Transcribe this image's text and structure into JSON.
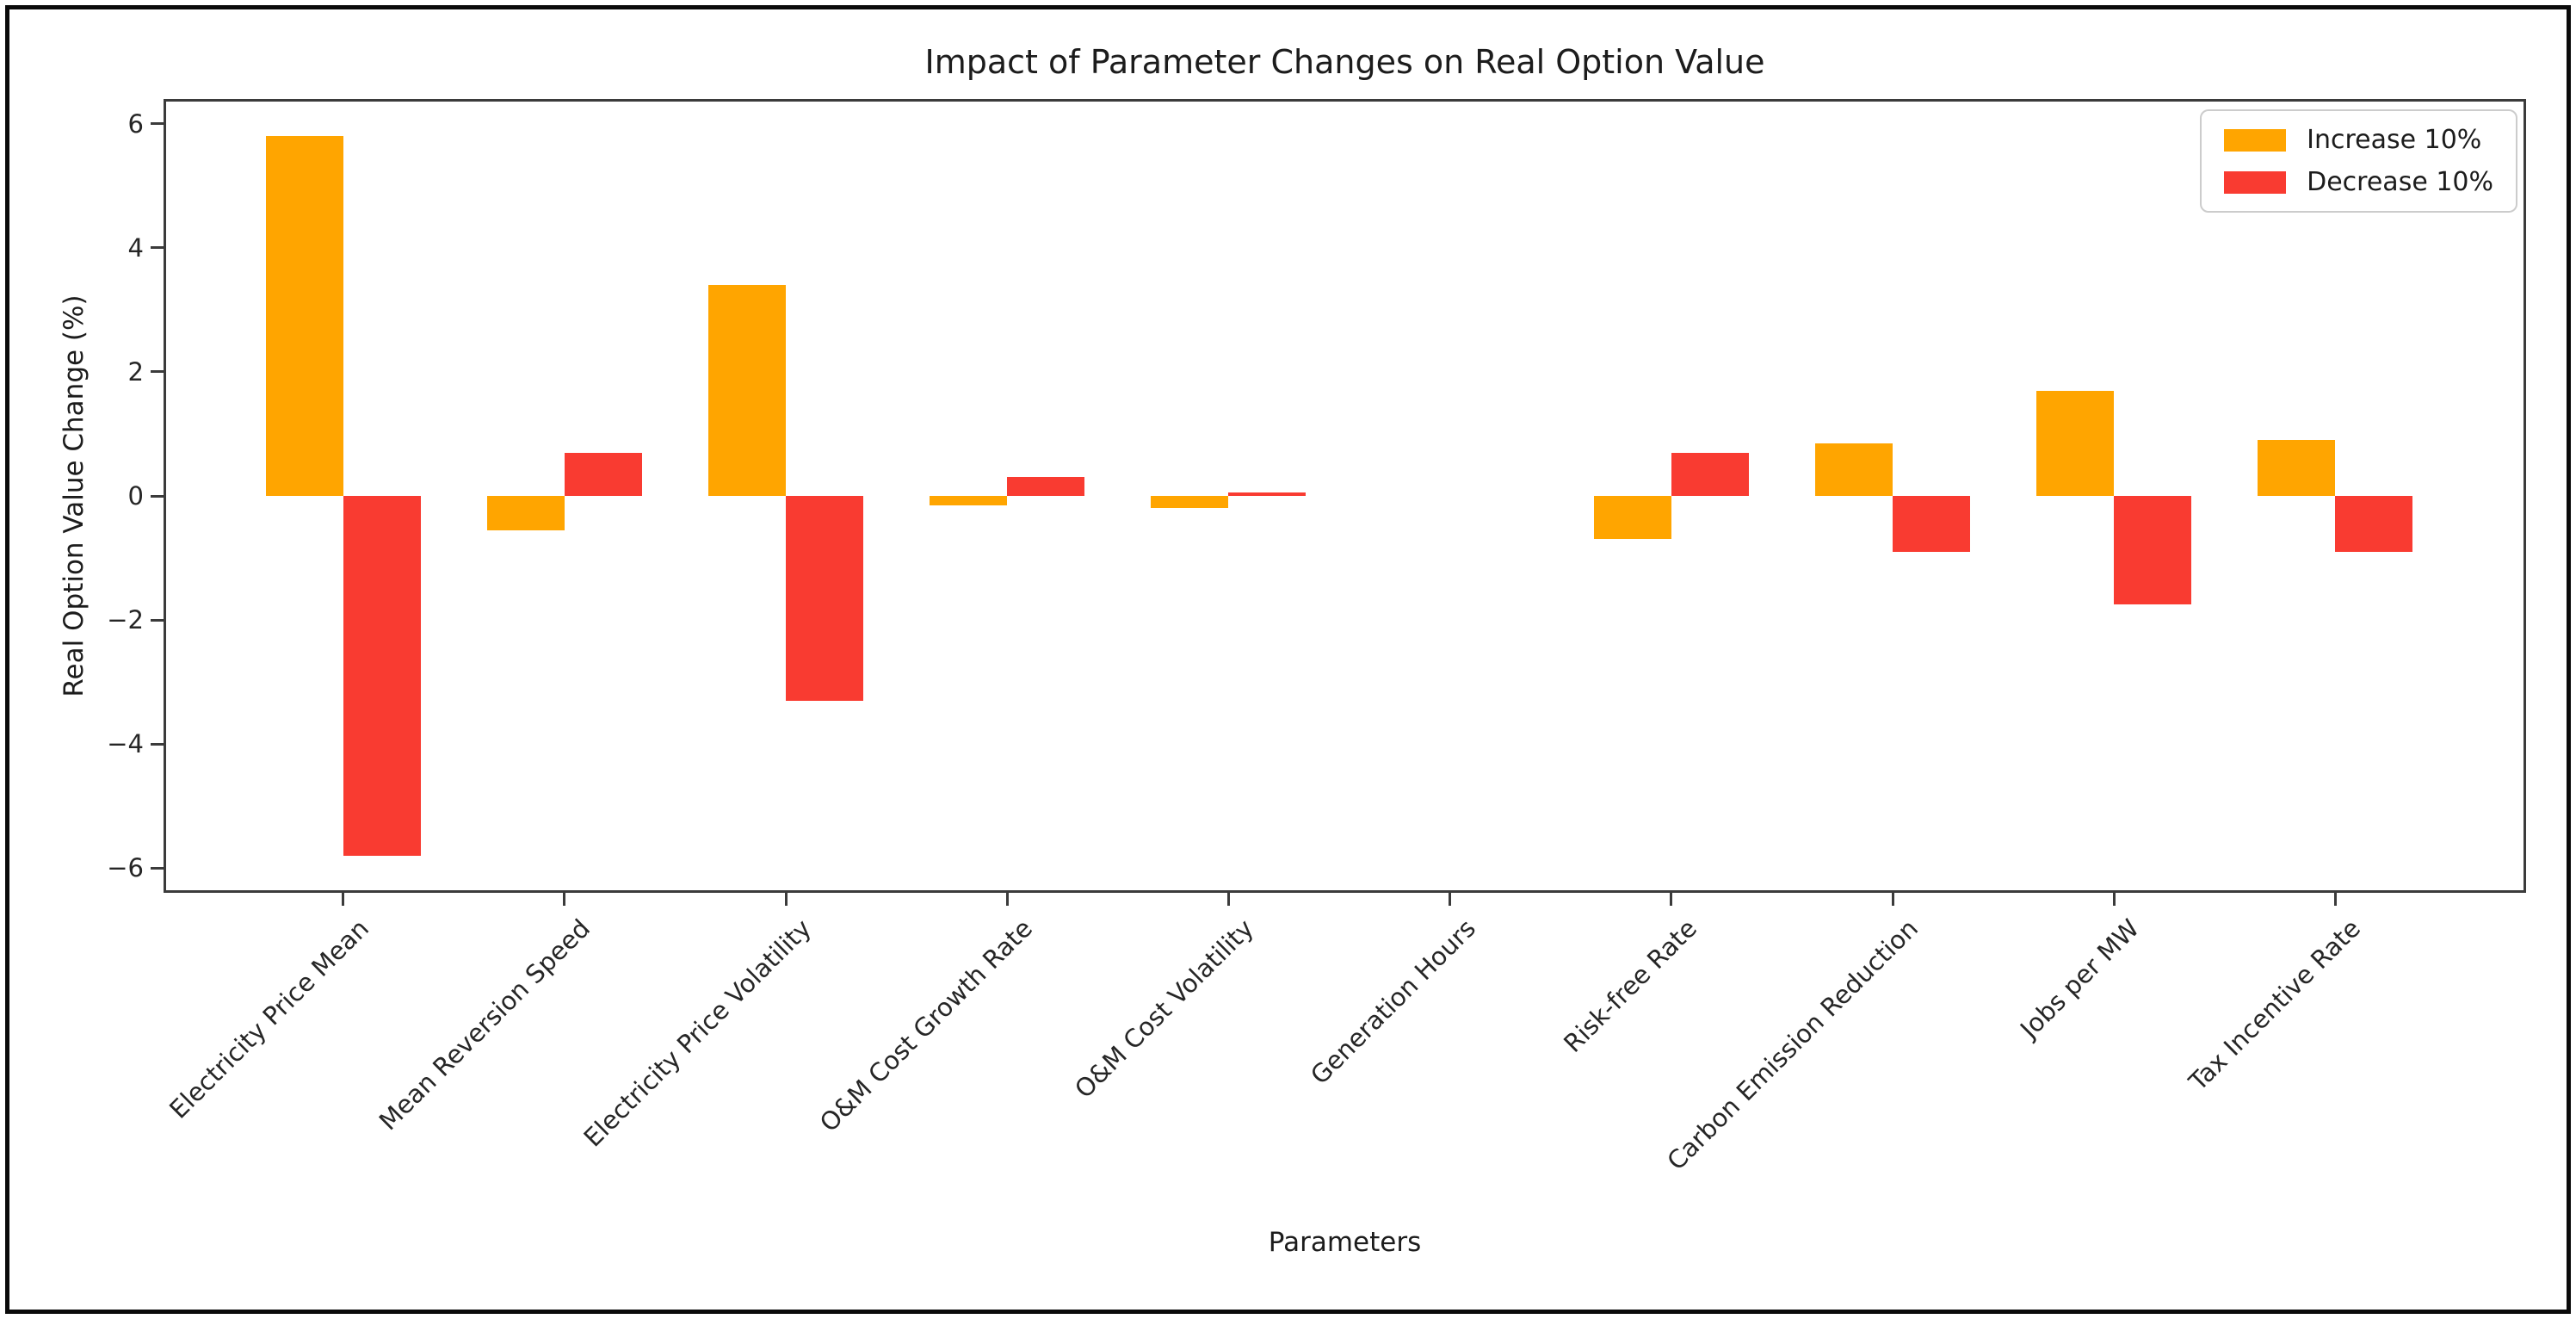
{
  "figure": {
    "title": "Impact of Parameter Changes on Real Option Value",
    "xlabel": "Parameters",
    "ylabel": "Real Option Value Change (%)"
  },
  "legend": {
    "items": [
      {
        "label": "Increase 10%",
        "color": "#FFA500"
      },
      {
        "label": "Decrease 10%",
        "color": "#F93B31"
      }
    ],
    "position": "upper right"
  },
  "chart_data": {
    "type": "bar",
    "title": "Impact of Parameter Changes on Real Option Value",
    "xlabel": "Parameters",
    "ylabel": "Real Option Value Change (%)",
    "categories": [
      "Electricity Price Mean",
      "Mean Reversion Speed",
      "Electricity Price Volatility",
      "O&M Cost Growth Rate",
      "O&M Cost Volatility",
      "Generation Hours",
      "Risk-free Rate",
      "Carbon Emission Reduction",
      "Jobs per MW",
      "Tax Incentive Rate"
    ],
    "series": [
      {
        "name": "Increase 10%",
        "color": "#FFA500",
        "values": [
          5.8,
          -0.55,
          3.4,
          -0.15,
          -0.2,
          0,
          -0.7,
          0.85,
          1.7,
          0.9
        ]
      },
      {
        "name": "Decrease 10%",
        "color": "#F93B31",
        "values": [
          -5.8,
          0.7,
          -3.3,
          0.3,
          0.05,
          0,
          0.7,
          -0.9,
          -1.75,
          -0.9
        ]
      }
    ],
    "ylim": [
      -6.4,
      6.4
    ],
    "yticks": [
      {
        "value": -6,
        "label": "−6"
      },
      {
        "value": -4,
        "label": "−4"
      },
      {
        "value": -2,
        "label": "−2"
      },
      {
        "value": 0,
        "label": "0"
      },
      {
        "value": 2,
        "label": "2"
      },
      {
        "value": 4,
        "label": "4"
      },
      {
        "value": 6,
        "label": "6"
      }
    ],
    "bar_width_fraction": 0.35,
    "grid": false,
    "legend_position": "upper right"
  }
}
